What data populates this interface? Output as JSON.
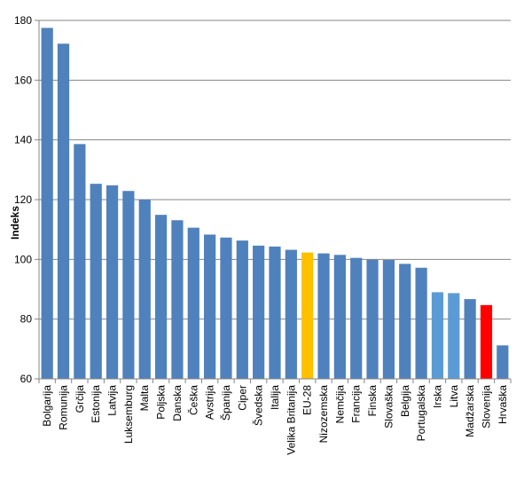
{
  "chart_data": {
    "type": "bar",
    "title": "",
    "xlabel": "",
    "ylabel": "Indeks",
    "ylim": [
      60,
      180
    ],
    "yticks": [
      60,
      80,
      100,
      120,
      140,
      160,
      180
    ],
    "grid": true,
    "legend": "none",
    "colors": {
      "default": "#4F81BD",
      "light": "#5B9BD5",
      "eu": "#FFC000",
      "highlight": "#FF0000"
    },
    "categories": [
      "Bolgarija",
      "Romunija",
      "Grčija",
      "Estonija",
      "Latvija",
      "Luksemburg",
      "Malta",
      "Poljska",
      "Danska",
      "Češka",
      "Avstrija",
      "Španija",
      "Ciper",
      "Švedska",
      "Italija",
      "Velika Britanija",
      "EU-28",
      "Nizozemska",
      "Nemčija",
      "Francija",
      "Finska",
      "Slovaška",
      "Belgija",
      "Portugalska",
      "Irska",
      "Litva",
      "Madžarska",
      "Slovenija",
      "Hrvaška"
    ],
    "values": [
      177.5,
      172.2,
      138.6,
      125.3,
      124.8,
      122.9,
      120.0,
      114.9,
      113.1,
      110.6,
      108.3,
      107.3,
      106.3,
      104.6,
      104.3,
      103.2,
      102.3,
      102.0,
      101.5,
      100.5,
      99.9,
      99.8,
      98.5,
      97.2,
      89.0,
      88.7,
      86.7,
      84.7,
      71.2
    ],
    "bar_color_keys": [
      "default",
      "default",
      "default",
      "default",
      "default",
      "default",
      "default",
      "default",
      "default",
      "default",
      "default",
      "default",
      "default",
      "default",
      "default",
      "default",
      "eu",
      "default",
      "default",
      "default",
      "default",
      "default",
      "default",
      "default",
      "light",
      "light",
      "default",
      "highlight",
      "default"
    ]
  }
}
